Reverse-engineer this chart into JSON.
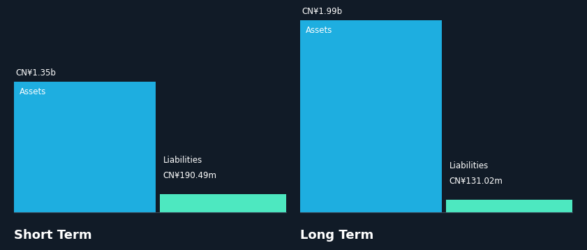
{
  "background_color": "#111b27",
  "text_color": "#ffffff",
  "bar_color_assets": "#1eaee0",
  "bar_color_liabilities": "#4de8c0",
  "sections": [
    {
      "label": "Short Term",
      "assets_label": "Assets",
      "assets_value": 1.35,
      "assets_text": "CN¥1.35b",
      "liabilities_label": "Liabilities",
      "liabilities_value": 0.19049,
      "liabilities_text": "CN¥190.49m"
    },
    {
      "label": "Long Term",
      "assets_label": "Assets",
      "assets_value": 1.99,
      "assets_text": "CN¥1.99b",
      "liabilities_label": "Liabilities",
      "liabilities_value": 0.13102,
      "liabilities_text": "CN¥131.02m"
    }
  ],
  "max_value": 1.99,
  "section_label_fontsize": 13,
  "value_fontsize": 8.5,
  "inner_label_fontsize": 8.5,
  "liab_label_fontsize": 8.5
}
